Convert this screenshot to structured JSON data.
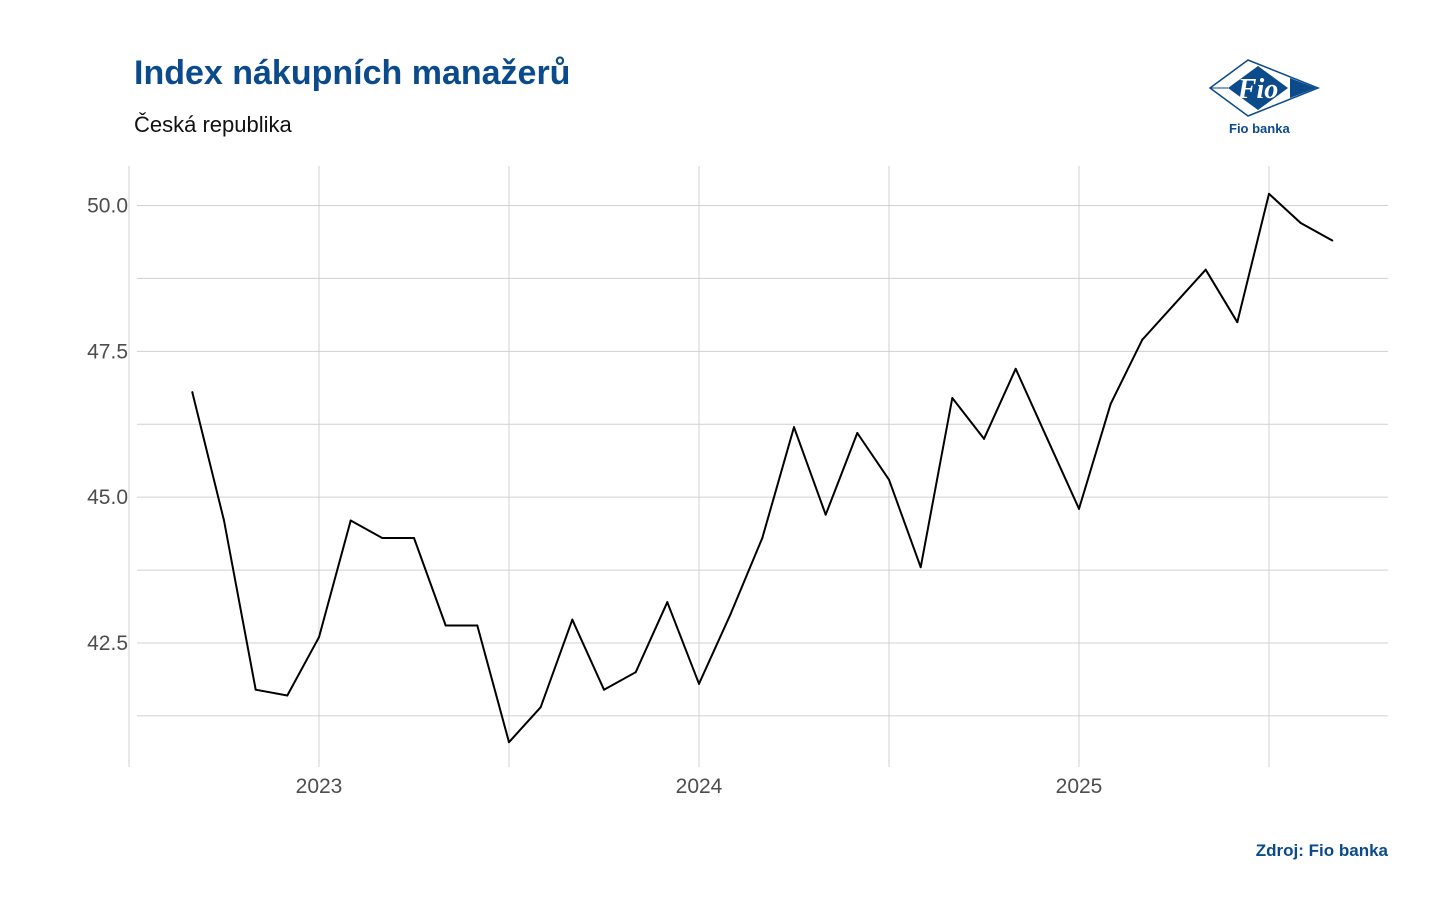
{
  "header": {
    "title": "Index nákupních manažerů",
    "subtitle": "Česká republika"
  },
  "logo": {
    "mark_text": "Fio",
    "caption": "Fio banka"
  },
  "footer": {
    "source": "Zdroj: Fio banka"
  },
  "colors": {
    "brand": "#0b4a8b",
    "line": "#000000",
    "grid": "#d0d0d0",
    "tick_text": "#4d4d4d"
  },
  "chart_data": {
    "type": "line",
    "title": "Index nákupních manažerů",
    "subtitle": "Česká republika",
    "xlabel": "",
    "ylabel": "",
    "grid": true,
    "x_tick_labels": [
      "2023",
      "2024",
      "2025"
    ],
    "y_ticks": [
      42.5,
      45.0,
      47.5,
      50.0
    ],
    "y_tick_labels": [
      "42.5",
      "45.0",
      "47.5",
      "50.0"
    ],
    "ylim": [
      40.2,
      50.6
    ],
    "series": [
      {
        "name": "",
        "x": [
          "2022-09",
          "2022-10",
          "2022-11",
          "2022-12",
          "2023-01",
          "2023-02",
          "2023-03",
          "2023-04",
          "2023-05",
          "2023-06",
          "2023-07",
          "2023-08",
          "2023-09",
          "2023-10",
          "2023-11",
          "2023-12",
          "2024-01",
          "2024-02",
          "2024-03",
          "2024-04",
          "2024-05",
          "2024-06",
          "2024-07",
          "2024-08",
          "2024-09",
          "2024-10",
          "2024-11",
          "2024-12",
          "2025-01",
          "2025-02",
          "2025-03",
          "2025-04",
          "2025-05",
          "2025-06",
          "2025-07",
          "2025-08",
          "2025-09"
        ],
        "values": [
          46.8,
          44.6,
          41.7,
          41.6,
          42.6,
          44.6,
          44.3,
          44.3,
          42.8,
          42.8,
          40.8,
          41.4,
          42.9,
          41.7,
          42.0,
          43.2,
          41.8,
          43.0,
          44.3,
          46.2,
          44.7,
          46.1,
          45.3,
          43.8,
          46.7,
          46.0,
          47.2,
          46.0,
          44.8,
          46.6,
          47.7,
          48.3,
          48.9,
          48.0,
          50.2,
          49.7,
          49.4
        ]
      }
    ]
  }
}
